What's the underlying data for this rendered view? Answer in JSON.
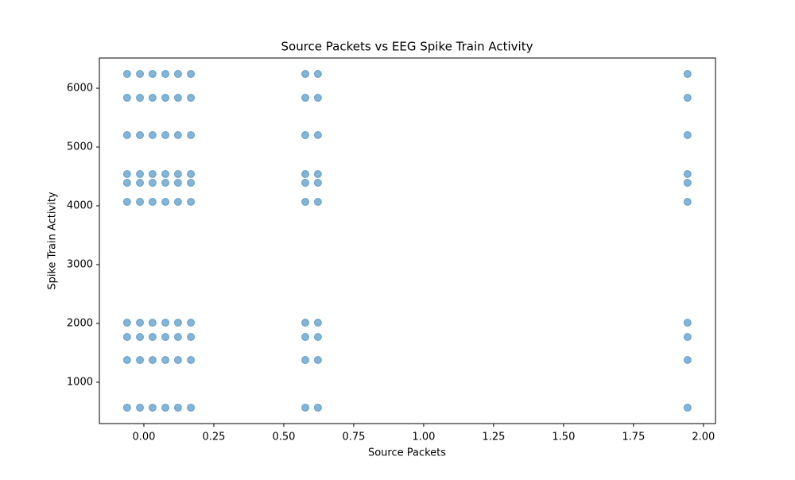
{
  "chart_data": {
    "type": "scatter",
    "title": "Source Packets vs EEG Spike Train Activity",
    "x_label": "Source Packets",
    "y_label": "Spike Train Activity",
    "color": "#1f77b4",
    "opacity": 0.55,
    "x": [
      -0.06,
      -0.014,
      0.031,
      0.077,
      0.122,
      0.168,
      0.577,
      0.622,
      1.943,
      -0.06,
      -0.014,
      0.031,
      0.077,
      0.122,
      0.168,
      0.577,
      0.622,
      1.943,
      -0.06,
      -0.014,
      0.031,
      0.077,
      0.122,
      0.168,
      0.577,
      0.622,
      1.943,
      -0.06,
      -0.014,
      0.031,
      0.077,
      0.122,
      0.168,
      0.577,
      0.622,
      1.943,
      -0.06,
      -0.014,
      0.031,
      0.077,
      0.122,
      0.168,
      0.577,
      0.622,
      1.943,
      -0.06,
      -0.014,
      0.031,
      0.077,
      0.122,
      0.168,
      0.577,
      0.622,
      1.943,
      -0.06,
      -0.014,
      0.031,
      0.077,
      0.122,
      0.168,
      0.577,
      0.622,
      1.943,
      -0.06,
      -0.014,
      0.031,
      0.077,
      0.122,
      0.168,
      0.577,
      0.622,
      1.943,
      -0.06,
      -0.014,
      0.031,
      0.077,
      0.122,
      0.168,
      0.577,
      0.622,
      1.943,
      -0.06,
      -0.014,
      0.031,
      0.077,
      0.122,
      0.168,
      0.577,
      0.622,
      1.943
    ],
    "values": [
      6243,
      6243,
      6243,
      6243,
      6243,
      6243,
      6243,
      6243,
      6243,
      5838,
      5838,
      5838,
      5838,
      5838,
      5838,
      5838,
      5838,
      5838,
      5203,
      5203,
      5203,
      5203,
      5203,
      5203,
      5203,
      5203,
      5203,
      4541,
      4541,
      4541,
      4541,
      4541,
      4541,
      4541,
      4541,
      4541,
      4392,
      4392,
      4392,
      4392,
      4392,
      4392,
      4392,
      4392,
      4392,
      4068,
      4068,
      4068,
      4068,
      4068,
      4068,
      4068,
      4068,
      4068,
      2013,
      2013,
      2013,
      2013,
      2013,
      2013,
      2013,
      2013,
      2013,
      1770,
      1770,
      1770,
      1770,
      1770,
      1770,
      1770,
      1770,
      1770,
      1378,
      1378,
      1378,
      1378,
      1378,
      1378,
      1378,
      1378,
      1378,
      568,
      568,
      568,
      568,
      568,
      568,
      568,
      568,
      568
    ],
    "xlim": [
      -0.159,
      2.043
    ],
    "ylim": [
      297,
      6514
    ],
    "xticks": [
      {
        "value": 0,
        "label": "0.00"
      },
      {
        "value": 0.25,
        "label": "0.25"
      },
      {
        "value": 0.5,
        "label": "0.50"
      },
      {
        "value": 0.75,
        "label": "0.75"
      },
      {
        "value": 1,
        "label": "1.00"
      },
      {
        "value": 1.25,
        "label": "1.25"
      },
      {
        "value": 1.5,
        "label": "1.50"
      },
      {
        "value": 1.75,
        "label": "1.75"
      },
      {
        "value": 2,
        "label": "2.00"
      }
    ],
    "yticks": [
      1000,
      2000,
      3000,
      4000,
      5000,
      6000
    ],
    "grid": false
  }
}
